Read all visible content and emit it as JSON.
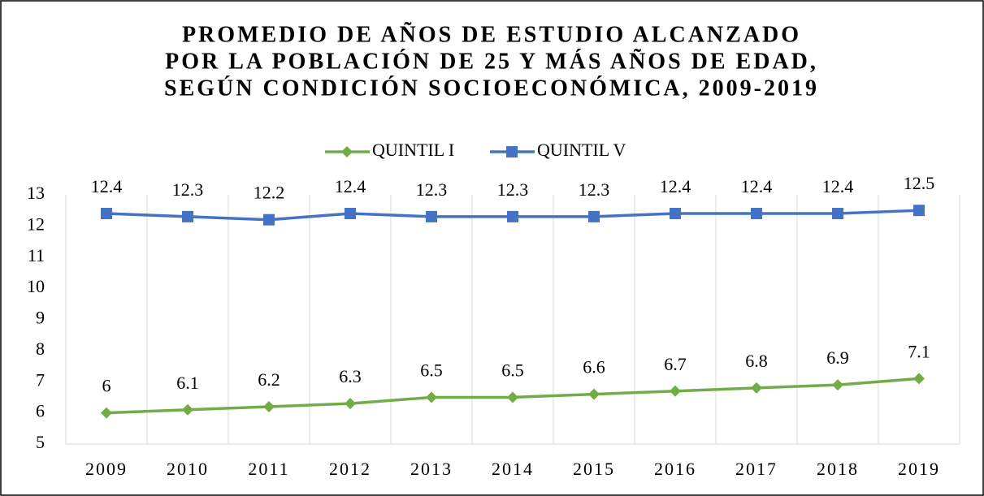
{
  "chart_data": {
    "type": "line",
    "title": [
      "PROMEDIO DE AÑOS DE ESTUDIO ALCANZADO",
      "POR LA POBLACIÓN DE 25 Y MÁS AÑOS DE EDAD,",
      "SEGÚN CONDICIÓN SOCIOECONÓMICA, 2009-2019"
    ],
    "categories": [
      "2009",
      "2010",
      "2011",
      "2012",
      "2013",
      "2014",
      "2015",
      "2016",
      "2017",
      "2018",
      "2019"
    ],
    "series": [
      {
        "name": "QUINTIL I",
        "color": "#70ad47",
        "marker": "diamond",
        "values": [
          6,
          6.1,
          6.2,
          6.3,
          6.5,
          6.5,
          6.6,
          6.7,
          6.8,
          6.9,
          7.1
        ]
      },
      {
        "name": "QUINTIL V",
        "color": "#4472c4",
        "marker": "square",
        "values": [
          12.4,
          12.3,
          12.2,
          12.4,
          12.3,
          12.3,
          12.3,
          12.4,
          12.4,
          12.4,
          12.5
        ]
      }
    ],
    "ylim": [
      5,
      13
    ],
    "yticks": [
      5,
      6,
      7,
      8,
      9,
      10,
      11,
      12,
      13
    ],
    "legend": "top"
  }
}
